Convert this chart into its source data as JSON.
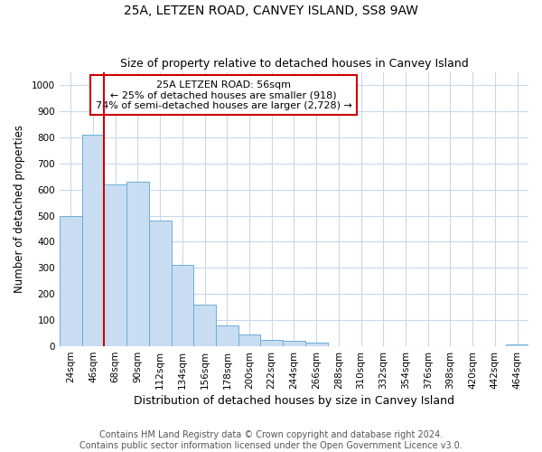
{
  "title": "25A, LETZEN ROAD, CANVEY ISLAND, SS8 9AW",
  "subtitle": "Size of property relative to detached houses in Canvey Island",
  "xlabel": "Distribution of detached houses by size in Canvey Island",
  "ylabel": "Number of detached properties",
  "footer_line1": "Contains HM Land Registry data © Crown copyright and database right 2024.",
  "footer_line2": "Contains public sector information licensed under the Open Government Licence v3.0.",
  "annotation_line1": "25A LETZEN ROAD: 56sqm",
  "annotation_line2": "← 25% of detached houses are smaller (918)",
  "annotation_line3": "74% of semi-detached houses are larger (2,728) →",
  "bar_categories": [
    "24sqm",
    "46sqm",
    "68sqm",
    "90sqm",
    "112sqm",
    "134sqm",
    "156sqm",
    "178sqm",
    "200sqm",
    "222sqm",
    "244sqm",
    "266sqm",
    "288sqm",
    "310sqm",
    "332sqm",
    "354sqm",
    "376sqm",
    "398sqm",
    "420sqm",
    "442sqm",
    "464sqm"
  ],
  "bar_values": [
    500,
    810,
    620,
    630,
    480,
    310,
    160,
    80,
    45,
    25,
    20,
    13,
    0,
    0,
    0,
    0,
    0,
    0,
    0,
    0,
    8
  ],
  "bar_color": "#c9ddf2",
  "bar_edge_color": "#6aaed6",
  "vline_color": "#cc0000",
  "vline_x": 1.5,
  "annotation_box_color": "#ffffff",
  "annotation_box_edge": "#cc0000",
  "grid_color": "#c8d8ea",
  "ylim": [
    0,
    1050
  ],
  "yticks": [
    0,
    100,
    200,
    300,
    400,
    500,
    600,
    700,
    800,
    900,
    1000
  ],
  "title_fontsize": 10,
  "subtitle_fontsize": 9,
  "xlabel_fontsize": 9,
  "ylabel_fontsize": 8.5,
  "tick_fontsize": 7.5,
  "annotation_fontsize": 8,
  "footer_fontsize": 7
}
